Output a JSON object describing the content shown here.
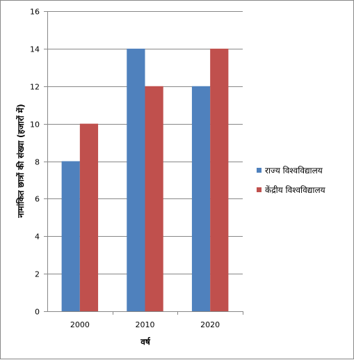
{
  "chart_data": {
    "type": "bar",
    "title": "",
    "xlabel": "वर्ष",
    "ylabel": "नामांकित छात्रों की संख्या (हजारों में)",
    "categories": [
      "2000",
      "2010",
      "2020"
    ],
    "series": [
      {
        "name": "राज्य विश्वविद्यालय",
        "color": "#4f81bd",
        "values": [
          8,
          14,
          12
        ]
      },
      {
        "name": "केंद्रीय विश्वविद्यालय",
        "color": "#c0504d",
        "values": [
          10,
          12,
          14
        ]
      }
    ],
    "ylim": [
      0,
      16
    ],
    "yticks": [
      0,
      2,
      4,
      6,
      8,
      10,
      12,
      14,
      16
    ],
    "grid": true,
    "legend_position": "right"
  }
}
